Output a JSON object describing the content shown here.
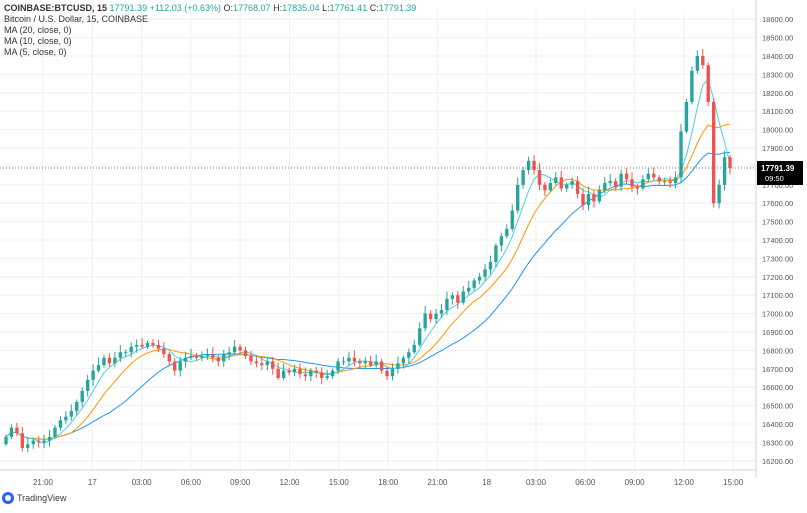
{
  "header": {
    "symbol": "COINBASE:BTCUSD, 15",
    "change": "+112.03 (+0.63%)",
    "o_label": "O:",
    "o_value": "17768.07",
    "h_label": "H:",
    "h_value": "17835.04",
    "l_label": "L:",
    "l_value": "17761.41",
    "c_label": "C:",
    "c_value": "17791.39",
    "last": "17791.39"
  },
  "legend": {
    "title": "Bitcoin / U.S. Dollar, 15, COINBASE",
    "ma20": "MA (20, close, 0)",
    "ma10": "MA (10, close, 0)",
    "ma5": "MA (5, close, 0)"
  },
  "brand": {
    "name": "TradingView"
  },
  "colors": {
    "up": "#26a69a",
    "down": "#ef5350",
    "ma20": "#2196f3",
    "ma10": "#ff9800",
    "ma5": "#4dd0e1",
    "grid": "#eef0f3",
    "axis_text": "#555555",
    "price_label_bg": "#000000"
  },
  "chart_data": {
    "type": "candlestick",
    "ylim": [
      16150,
      18650
    ],
    "y_ticks": [
      16200,
      16300,
      16400,
      16500,
      16600,
      16700,
      16800,
      16900,
      17000,
      17100,
      17200,
      17300,
      17400,
      17500,
      17600,
      17700,
      17800,
      17900,
      18000,
      18100,
      18200,
      18300,
      18400,
      18500,
      18600
    ],
    "x_ticks": [
      "21:00",
      "17",
      "03:00",
      "06:00",
      "09:00",
      "12:00",
      "15:00",
      "18:00",
      "21:00",
      "18",
      "03:00",
      "06:00",
      "09:00",
      "12:00",
      "15:00"
    ],
    "last_price": 17791.39,
    "countdown": "09:50",
    "closes": [
      16330,
      16380,
      16350,
      16270,
      16290,
      16310,
      16300,
      16310,
      16330,
      16380,
      16420,
      16440,
      16470,
      16520,
      16580,
      16640,
      16690,
      16720,
      16760,
      16730,
      16760,
      16790,
      16790,
      16820,
      16830,
      16820,
      16840,
      16830,
      16810,
      16780,
      16740,
      16690,
      16740,
      16760,
      16770,
      16760,
      16770,
      16780,
      16760,
      16740,
      16780,
      16790,
      16820,
      16800,
      16770,
      16740,
      16730,
      16720,
      16740,
      16700,
      16650,
      16690,
      16680,
      16700,
      16670,
      16660,
      16690,
      16680,
      16650,
      16660,
      16690,
      16740,
      16740,
      16760,
      16740,
      16730,
      16740,
      16720,
      16740,
      16690,
      16660,
      16700,
      16730,
      16760,
      16790,
      16830,
      16920,
      17000,
      16970,
      17000,
      17020,
      17080,
      17100,
      17060,
      17120,
      17140,
      17180,
      17200,
      17240,
      17280,
      17370,
      17420,
      17460,
      17560,
      17700,
      17780,
      17830,
      17780,
      17700,
      17670,
      17710,
      17740,
      17680,
      17700,
      17720,
      17650,
      17590,
      17650,
      17610,
      17670,
      17710,
      17720,
      17690,
      17760,
      17730,
      17690,
      17680,
      17730,
      17760,
      17740,
      17720,
      17720,
      17710,
      17740,
      17990,
      18150,
      18320,
      18400,
      18350,
      18150,
      17600,
      17700,
      17850,
      17791.39
    ]
  }
}
